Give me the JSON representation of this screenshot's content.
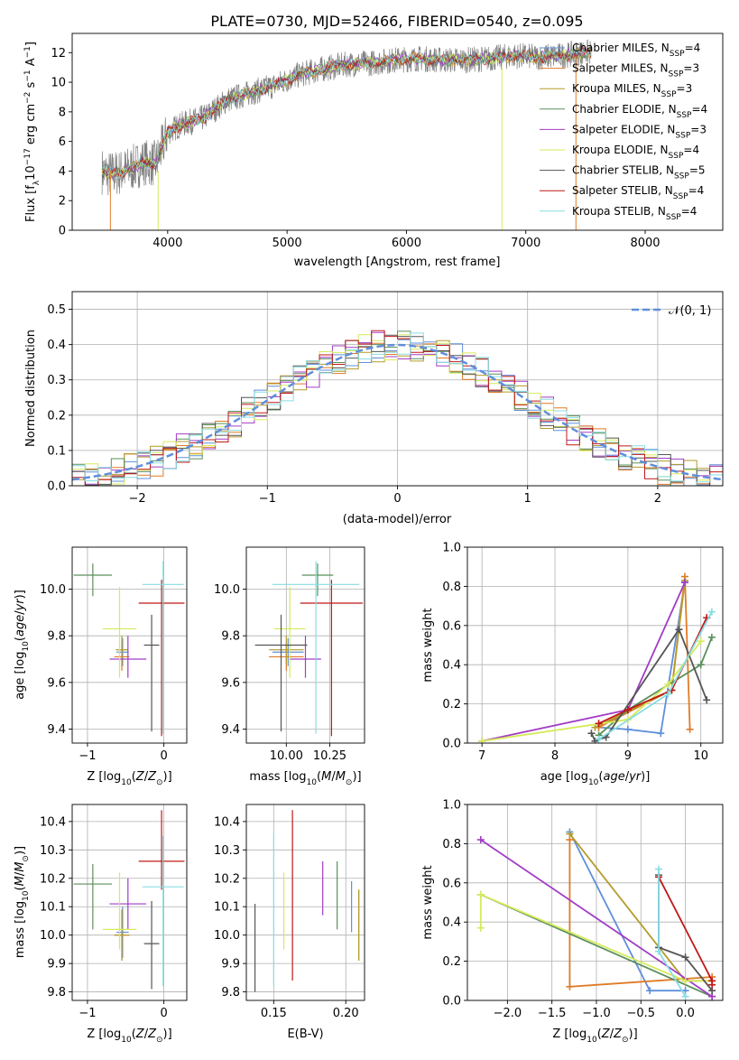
{
  "figure": {
    "title": "PLATE=0730, MJD=52466, FIBERID=0540, z=0.095"
  },
  "models": [
    {
      "name": "Chabrier MILES",
      "nssp": "4",
      "color": "#5f8fdc"
    },
    {
      "name": "Salpeter MILES",
      "nssp": "3",
      "color": "#e07b27"
    },
    {
      "name": "Kroupa MILES",
      "nssp": "3",
      "color": "#b49b2c"
    },
    {
      "name": "Chabrier ELODIE",
      "nssp": "4",
      "color": "#5b8f5b"
    },
    {
      "name": "Salpeter ELODIE",
      "nssp": "3",
      "color": "#a23cc6"
    },
    {
      "name": "Kroupa ELODIE",
      "nssp": "4",
      "color": "#d6ea5a"
    },
    {
      "name": "Chabrier STELIB",
      "nssp": "5",
      "color": "#555555"
    },
    {
      "name": "Salpeter STELIB",
      "nssp": "4",
      "color": "#c01818"
    },
    {
      "name": "Kroupa STELIB",
      "nssp": "4",
      "color": "#88dde3"
    }
  ],
  "nssp_label": "N",
  "nssp_sub": "SSP",
  "chart_data": [
    {
      "id": "spectrum",
      "type": "line",
      "xlabel": "wavelength [Angstrom, rest frame]",
      "ylabel_parts": [
        "Flux [f",
        "λ",
        "10",
        "−17",
        " erg cm",
        "−2",
        " s",
        "−1",
        " A",
        "−1",
        "]"
      ],
      "xlim": [
        3200,
        8650
      ],
      "ylim": [
        0,
        13.3
      ],
      "xticks": [
        4000,
        5000,
        6000,
        7000,
        8000
      ],
      "yticks": [
        0,
        2,
        4,
        6,
        8,
        10,
        12
      ],
      "data_color": "#808080",
      "series_note": "observed spectrum (grey) with 9 model fits",
      "continuum_x": [
        3450,
        3500,
        3600,
        3700,
        3800,
        3900,
        4000,
        4100,
        4300,
        4500,
        4700,
        4900,
        5100,
        5300,
        5500,
        5700,
        5900,
        6100,
        6300,
        6500,
        6700,
        6900,
        7100,
        7300,
        7500
      ],
      "continuum_y": [
        4.0,
        3.8,
        3.9,
        4.2,
        4.6,
        4.5,
        6.6,
        7.1,
        7.6,
        8.8,
        9.3,
        9.8,
        10.5,
        10.9,
        11.2,
        11.3,
        11.5,
        11.6,
        11.5,
        11.5,
        11.6,
        11.8,
        11.7,
        11.8,
        12.0
      ],
      "dips": [
        {
          "x": 3520,
          "depth": 4.0,
          "color": "#e07b27"
        },
        {
          "x": 3920,
          "depth": 4.0,
          "color": "#d6ea5a"
        },
        {
          "x": 6800,
          "depth": 11.0,
          "color": "#d6ea5a"
        },
        {
          "x": 7420,
          "depth": 11.8,
          "color": "#e07b27"
        }
      ]
    },
    {
      "id": "residuals",
      "type": "step",
      "xlabel": "(data-model)/error",
      "ylabel": "Normed distribution",
      "xlim": [
        -2.5,
        2.5
      ],
      "ylim": [
        0,
        0.55
      ],
      "xticks": [
        -2,
        -1,
        0,
        1,
        2
      ],
      "yticks": [
        0.0,
        0.1,
        0.2,
        0.3,
        0.4,
        0.5
      ],
      "ytick_labels": [
        "0.0",
        "0.1",
        "0.2",
        "0.3",
        "0.4",
        "0.5"
      ],
      "xtick_labels": [
        "−2",
        "−1",
        "0",
        "1",
        "2"
      ],
      "legend_label": "𝒩(0, 1)",
      "bin_width": 0.1,
      "bin_start": -2.5,
      "base_pdf_sigma": 1.0
    },
    {
      "id": "age_vs_Z",
      "type": "errorbar",
      "xlabel": "Z [log10(Z/Z⊙)]",
      "ylabel": "age [log10(age/yr)]",
      "xlim": [
        -1.2,
        0.3
      ],
      "ylim": [
        9.34,
        10.18
      ],
      "xticks": [
        -1,
        0
      ],
      "xtick_labels": [
        "−1",
        "0"
      ],
      "yticks": [
        9.4,
        9.6,
        9.8,
        10.0
      ],
      "ytick_labels": [
        "9.4",
        "9.6",
        "9.8",
        "10.0"
      ],
      "points": [
        {
          "model": 0,
          "x": -0.54,
          "y": 9.73,
          "xerr": [
            0.08,
            0.08
          ],
          "yerr": [
            0.06,
            0.06
          ]
        },
        {
          "model": 1,
          "x": -0.55,
          "y": 9.71,
          "xerr": [
            0.1,
            0.1
          ],
          "yerr": [
            0.06,
            0.06
          ]
        },
        {
          "model": 2,
          "x": -0.55,
          "y": 9.74,
          "xerr": [
            0.08,
            0.08
          ],
          "yerr": [
            0.06,
            0.06
          ]
        },
        {
          "model": 3,
          "x": -0.93,
          "y": 10.06,
          "xerr": [
            0.25,
            0.25
          ],
          "yerr": [
            0.09,
            0.05
          ]
        },
        {
          "model": 4,
          "x": -0.47,
          "y": 9.7,
          "xerr": [
            0.24,
            0.24
          ],
          "yerr": [
            0.08,
            0.1
          ]
        },
        {
          "model": 5,
          "x": -0.58,
          "y": 9.83,
          "xerr": [
            0.22,
            0.22
          ],
          "yerr": [
            0.21,
            0.18
          ]
        },
        {
          "model": 6,
          "x": -0.16,
          "y": 9.76,
          "xerr": [
            0.1,
            0.1
          ],
          "yerr": [
            0.37,
            0.13
          ]
        },
        {
          "model": 7,
          "x": -0.03,
          "y": 9.94,
          "xerr": [
            0.3,
            0.3
          ],
          "yerr": [
            0.57,
            0.1
          ]
        },
        {
          "model": 8,
          "x": -0.01,
          "y": 10.02,
          "xerr": [
            0.27,
            0.27
          ],
          "yerr": [
            0.64,
            0.1
          ]
        }
      ]
    },
    {
      "id": "age_vs_mass",
      "type": "errorbar",
      "xlabel": "mass [log10(M/M⊙)]",
      "xlim": [
        9.77,
        10.45
      ],
      "ylim": [
        9.34,
        10.18
      ],
      "xticks": [
        10.0,
        10.25
      ],
      "xtick_labels": [
        "10.00",
        "10.25"
      ],
      "yticks": [
        9.4,
        9.6,
        9.8,
        10.0
      ],
      "ytick_labels": [
        "9.4",
        "9.6",
        "9.8",
        "10.0"
      ],
      "points": [
        {
          "model": 0,
          "x": 10.01,
          "y": 9.73,
          "xerr": [
            0.09,
            0.09
          ],
          "yerr": [
            0.06,
            0.06
          ]
        },
        {
          "model": 1,
          "x": 10.0,
          "y": 9.71,
          "xerr": [
            0.1,
            0.1
          ],
          "yerr": [
            0.06,
            0.06
          ]
        },
        {
          "model": 2,
          "x": 10.0,
          "y": 9.74,
          "xerr": [
            0.1,
            0.1
          ],
          "yerr": [
            0.06,
            0.06
          ]
        },
        {
          "model": 3,
          "x": 10.18,
          "y": 10.06,
          "xerr": [
            0.09,
            0.09
          ],
          "yerr": [
            0.09,
            0.05
          ]
        },
        {
          "model": 4,
          "x": 10.11,
          "y": 9.7,
          "xerr": [
            0.09,
            0.09
          ],
          "yerr": [
            0.08,
            0.1
          ]
        },
        {
          "model": 5,
          "x": 10.02,
          "y": 9.83,
          "xerr": [
            0.09,
            0.09
          ],
          "yerr": [
            0.21,
            0.18
          ]
        },
        {
          "model": 6,
          "x": 9.97,
          "y": 9.76,
          "xerr": [
            0.15,
            0.15
          ],
          "yerr": [
            0.37,
            0.13
          ]
        },
        {
          "model": 7,
          "x": 10.26,
          "y": 9.94,
          "xerr": [
            0.18,
            0.18
          ],
          "yerr": [
            0.57,
            0.1
          ]
        },
        {
          "model": 8,
          "x": 10.17,
          "y": 10.02,
          "xerr": [
            0.25,
            0.25
          ],
          "yerr": [
            0.64,
            0.1
          ]
        }
      ]
    },
    {
      "id": "weight_vs_age",
      "type": "line",
      "xlabel": "age [log10(age/yr)]",
      "ylabel": "mass weight",
      "xlim": [
        6.8,
        10.3
      ],
      "ylim": [
        0,
        1.0
      ],
      "xticks": [
        7,
        8,
        9,
        10
      ],
      "yticks": [
        0.0,
        0.2,
        0.4,
        0.6,
        0.8,
        1.0
      ],
      "ytick_labels": [
        "0.0",
        "0.2",
        "0.4",
        "0.6",
        "0.8",
        "1.0"
      ],
      "series": [
        {
          "model": 0,
          "x": [
            8.6,
            9.0,
            9.45,
            9.78
          ],
          "y": [
            0.08,
            0.07,
            0.05,
            0.82
          ]
        },
        {
          "model": 1,
          "x": [
            8.6,
            9.6,
            9.78,
            9.85
          ],
          "y": [
            0.08,
            0.27,
            0.85,
            0.07
          ]
        },
        {
          "model": 2,
          "x": [
            8.55,
            9.6,
            9.78
          ],
          "y": [
            0.08,
            0.27,
            0.83
          ]
        },
        {
          "model": 3,
          "x": [
            8.6,
            9.0,
            10.0,
            10.15
          ],
          "y": [
            0.04,
            0.17,
            0.4,
            0.54
          ]
        },
        {
          "model": 4,
          "x": [
            7.0,
            9.0,
            9.78
          ],
          "y": [
            0.01,
            0.17,
            0.82
          ]
        },
        {
          "model": 5,
          "x": [
            7.0,
            9.0,
            9.55,
            10.0
          ],
          "y": [
            0.01,
            0.12,
            0.3,
            0.52
          ]
        },
        {
          "model": 6,
          "x": [
            8.5,
            8.55,
            8.7,
            9.7,
            10.08
          ],
          "y": [
            0.05,
            0.01,
            0.03,
            0.58,
            0.22
          ]
        },
        {
          "model": 7,
          "x": [
            8.6,
            9.0,
            9.6,
            10.08
          ],
          "y": [
            0.1,
            0.17,
            0.27,
            0.64
          ]
        },
        {
          "model": 8,
          "x": [
            8.6,
            9.55,
            10.15
          ],
          "y": [
            0.02,
            0.25,
            0.67
          ]
        }
      ]
    },
    {
      "id": "mass_vs_Z",
      "type": "errorbar",
      "xlabel": "Z [log10(Z/Z⊙)]",
      "ylabel": "mass [log10(M/M⊙)]",
      "xlim": [
        -1.2,
        0.3
      ],
      "ylim": [
        9.77,
        10.46
      ],
      "xticks": [
        -1,
        0
      ],
      "xtick_labels": [
        "−1",
        "0"
      ],
      "yticks": [
        9.8,
        9.9,
        10.0,
        10.1,
        10.2,
        10.3,
        10.4
      ],
      "ytick_labels": [
        "9.8",
        "9.9",
        "10.0",
        "10.1",
        "10.2",
        "10.3",
        "10.4"
      ],
      "points": [
        {
          "model": 0,
          "x": -0.54,
          "y": 10.01,
          "xerr": [
            0.08,
            0.08
          ],
          "yerr": [
            0.09,
            0.09
          ]
        },
        {
          "model": 1,
          "x": -0.55,
          "y": 10.0,
          "xerr": [
            0.1,
            0.1
          ],
          "yerr": [
            0.09,
            0.09
          ]
        },
        {
          "model": 2,
          "x": -0.55,
          "y": 10.0,
          "xerr": [
            0.1,
            0.1
          ],
          "yerr": [
            0.09,
            0.09
          ]
        },
        {
          "model": 3,
          "x": -0.93,
          "y": 10.18,
          "xerr": [
            0.25,
            0.25
          ],
          "yerr": [
            0.16,
            0.07
          ]
        },
        {
          "model": 4,
          "x": -0.47,
          "y": 10.11,
          "xerr": [
            0.24,
            0.24
          ],
          "yerr": [
            0.09,
            0.09
          ]
        },
        {
          "model": 5,
          "x": -0.58,
          "y": 10.02,
          "xerr": [
            0.22,
            0.22
          ],
          "yerr": [
            0.07,
            0.2
          ]
        },
        {
          "model": 6,
          "x": -0.16,
          "y": 9.97,
          "xerr": [
            0.1,
            0.1
          ],
          "yerr": [
            0.16,
            0.15
          ]
        },
        {
          "model": 7,
          "x": -0.03,
          "y": 10.26,
          "xerr": [
            0.3,
            0.3
          ],
          "yerr": [
            0.1,
            0.18
          ]
        },
        {
          "model": 8,
          "x": -0.01,
          "y": 10.17,
          "xerr": [
            0.27,
            0.27
          ],
          "yerr": [
            0.35,
            0.18
          ]
        }
      ]
    },
    {
      "id": "mass_vs_ebv",
      "type": "errorbar",
      "xlabel": "E(B-V)",
      "xlim": [
        0.131,
        0.213
      ],
      "ylim": [
        9.77,
        10.46
      ],
      "xticks": [
        0.15,
        0.2
      ],
      "xtick_labels": [
        "0.15",
        "0.20"
      ],
      "yticks": [
        9.8,
        9.9,
        10.0,
        10.1,
        10.2,
        10.3,
        10.4
      ],
      "ytick_labels": [
        "9.8",
        "9.9",
        "10.0",
        "10.1",
        "10.2",
        "10.3",
        "10.4"
      ],
      "points": [
        {
          "model": 6,
          "x": 0.137,
          "y": 9.96,
          "xerr": [
            0,
            0
          ],
          "yerr": [
            0.16,
            0.15
          ]
        },
        {
          "model": 8,
          "x": 0.15,
          "y": 10.09,
          "xerr": [
            0,
            0
          ],
          "yerr": [
            0.27,
            0.27
          ]
        },
        {
          "model": 5,
          "x": 0.157,
          "y": 10.09,
          "xerr": [
            0,
            0
          ],
          "yerr": [
            0.14,
            0.13
          ]
        },
        {
          "model": 7,
          "x": 0.163,
          "y": 10.14,
          "xerr": [
            0,
            0
          ],
          "yerr": [
            0.3,
            0.3
          ]
        },
        {
          "model": 4,
          "x": 0.184,
          "y": 10.16,
          "xerr": [
            0,
            0
          ],
          "yerr": [
            0.09,
            0.1
          ]
        },
        {
          "model": 3,
          "x": 0.194,
          "y": 10.14,
          "xerr": [
            0,
            0
          ],
          "yerr": [
            0.12,
            0.12
          ]
        },
        {
          "model": 0,
          "x": 0.204,
          "y": 10.1,
          "xerr": [
            0,
            0
          ],
          "yerr": [
            0.09,
            0.09
          ]
        },
        {
          "model": 1,
          "x": 0.209,
          "y": 10.03,
          "xerr": [
            0,
            0
          ],
          "yerr": [
            0.12,
            0.13
          ]
        },
        {
          "model": 2,
          "x": 0.209,
          "y": 10.03,
          "xerr": [
            0,
            0
          ],
          "yerr": [
            0.12,
            0.13
          ]
        }
      ]
    },
    {
      "id": "weight_vs_Z",
      "type": "line",
      "xlabel": "Z [log10(Z/Z⊙)]",
      "ylabel": "mass weight",
      "xlim": [
        -2.45,
        0.42
      ],
      "ylim": [
        0,
        1.0
      ],
      "xticks": [
        -2.0,
        -1.5,
        -1.0,
        -0.5,
        0.0
      ],
      "xtick_labels": [
        "−2.0",
        "−1.5",
        "−1.0",
        "−0.5",
        "0.0"
      ],
      "yticks": [
        0.0,
        0.2,
        0.4,
        0.6,
        0.8,
        1.0
      ],
      "ytick_labels": [
        "0.0",
        "0.2",
        "0.4",
        "0.6",
        "0.8",
        "1.0"
      ],
      "series": [
        {
          "model": 0,
          "x": [
            -1.3,
            -0.4,
            0.0
          ],
          "y": [
            0.86,
            0.05,
            0.05
          ]
        },
        {
          "model": 1,
          "x": [
            -1.3,
            -1.3,
            0.3
          ],
          "y": [
            0.82,
            0.07,
            0.12
          ]
        },
        {
          "model": 2,
          "x": [
            -1.3,
            0.0,
            0.3
          ],
          "y": [
            0.85,
            0.1,
            0.1
          ]
        },
        {
          "model": 3,
          "x": [
            -2.3,
            0.3
          ],
          "y": [
            0.54,
            0.02
          ]
        },
        {
          "model": 4,
          "x": [
            -2.3,
            0.3
          ],
          "y": [
            0.82,
            0.02
          ]
        },
        {
          "model": 5,
          "x": [
            -2.3,
            -2.3,
            0.0,
            0.3
          ],
          "y": [
            0.37,
            0.54,
            0.1,
            0.1
          ]
        },
        {
          "model": 6,
          "x": [
            -0.3,
            -0.3,
            0.0,
            0.3
          ],
          "y": [
            0.64,
            0.27,
            0.22,
            0.05
          ]
        },
        {
          "model": 7,
          "x": [
            -0.3,
            0.3,
            0.3
          ],
          "y": [
            0.63,
            0.1,
            0.08
          ]
        },
        {
          "model": 8,
          "x": [
            -0.3,
            -0.3,
            0.0
          ],
          "y": [
            0.67,
            0.25,
            0.02
          ]
        }
      ]
    }
  ]
}
